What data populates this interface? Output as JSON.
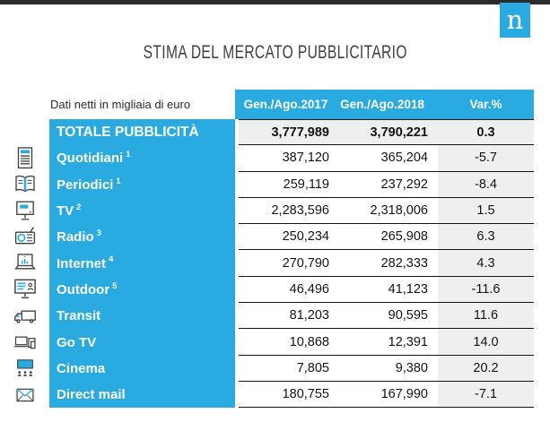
{
  "logo": {
    "letter": "n"
  },
  "title": "STIMA DEL MERCATO PUBBLICITARIO",
  "table": {
    "note": "Dati netti in migliaia di euro",
    "columns": [
      "Gen./Ago.2017",
      "Gen./Ago.2018",
      "Var.%"
    ],
    "rows": [
      {
        "icon": null,
        "label": "TOTALE PUBBLICITÀ",
        "sup": "",
        "v2017": "3,777,989",
        "v2018": "3,790,221",
        "var": "0.3",
        "total": true
      },
      {
        "icon": "newspaper",
        "label": "Quotidiani",
        "sup": "1",
        "v2017": "387,120",
        "v2018": "365,204",
        "var": "-5.7",
        "total": false
      },
      {
        "icon": "magazine",
        "label": "Periodici",
        "sup": "1",
        "v2017": "259,119",
        "v2018": "237,292",
        "var": "-8.4",
        "total": false
      },
      {
        "icon": "tv",
        "label": "TV",
        "sup": "2",
        "v2017": "2,283,596",
        "v2018": "2,318,006",
        "var": "1.5",
        "total": false
      },
      {
        "icon": "radio",
        "label": "Radio",
        "sup": "3",
        "v2017": "250,234",
        "v2018": "265,908",
        "var": "6.3",
        "total": false
      },
      {
        "icon": "internet",
        "label": "Internet",
        "sup": "4",
        "v2017": "270,790",
        "v2018": "282,333",
        "var": "4.3",
        "total": false
      },
      {
        "icon": "outdoor",
        "label": "Outdoor",
        "sup": "5",
        "v2017": "46,496",
        "v2018": "41,123",
        "var": "-11.6",
        "total": false
      },
      {
        "icon": "transit",
        "label": "Transit",
        "sup": "",
        "v2017": "81,203",
        "v2018": "90,595",
        "var": "11.6",
        "total": false
      },
      {
        "icon": "gotv",
        "label": "Go TV",
        "sup": "",
        "v2017": "10,868",
        "v2018": "12,391",
        "var": "14.0",
        "total": false
      },
      {
        "icon": "cinema",
        "label": "Cinema",
        "sup": "",
        "v2017": "7,805",
        "v2018": "9,380",
        "var": "20.2",
        "total": false
      },
      {
        "icon": "directmail",
        "label": "Direct mail",
        "sup": "",
        "v2017": "180,755",
        "v2018": "167,990",
        "var": "-7.1",
        "total": false
      }
    ]
  },
  "colors": {
    "accent_blue": "#29abe2",
    "divider_black": "#141414",
    "var_column_bg": "#efefef",
    "top_bar": "#2b2b2b",
    "title_text": "#404040"
  },
  "chart_data": {
    "type": "table",
    "title": "STIMA DEL MERCATO PUBBLICITARIO",
    "note": "Dati netti in migliaia di euro",
    "columns": [
      "Gen./Ago.2017",
      "Gen./Ago.2018",
      "Var.%"
    ],
    "rows": [
      {
        "label": "TOTALE PUBBLICITÀ",
        "gen_ago_2017": 3777989,
        "gen_ago_2018": 3790221,
        "var_pct": 0.3
      },
      {
        "label": "Quotidiani",
        "gen_ago_2017": 387120,
        "gen_ago_2018": 365204,
        "var_pct": -5.7
      },
      {
        "label": "Periodici",
        "gen_ago_2017": 259119,
        "gen_ago_2018": 237292,
        "var_pct": -8.4
      },
      {
        "label": "TV",
        "gen_ago_2017": 2283596,
        "gen_ago_2018": 2318006,
        "var_pct": 1.5
      },
      {
        "label": "Radio",
        "gen_ago_2017": 250234,
        "gen_ago_2018": 265908,
        "var_pct": 6.3
      },
      {
        "label": "Internet",
        "gen_ago_2017": 270790,
        "gen_ago_2018": 282333,
        "var_pct": 4.3
      },
      {
        "label": "Outdoor",
        "gen_ago_2017": 46496,
        "gen_ago_2018": 41123,
        "var_pct": -11.6
      },
      {
        "label": "Transit",
        "gen_ago_2017": 81203,
        "gen_ago_2018": 90595,
        "var_pct": 11.6
      },
      {
        "label": "Go TV",
        "gen_ago_2017": 10868,
        "gen_ago_2018": 12391,
        "var_pct": 14.0
      },
      {
        "label": "Cinema",
        "gen_ago_2017": 7805,
        "gen_ago_2018": 9380,
        "var_pct": 20.2
      },
      {
        "label": "Direct mail",
        "gen_ago_2017": 180755,
        "gen_ago_2018": 167990,
        "var_pct": -7.1
      }
    ]
  }
}
